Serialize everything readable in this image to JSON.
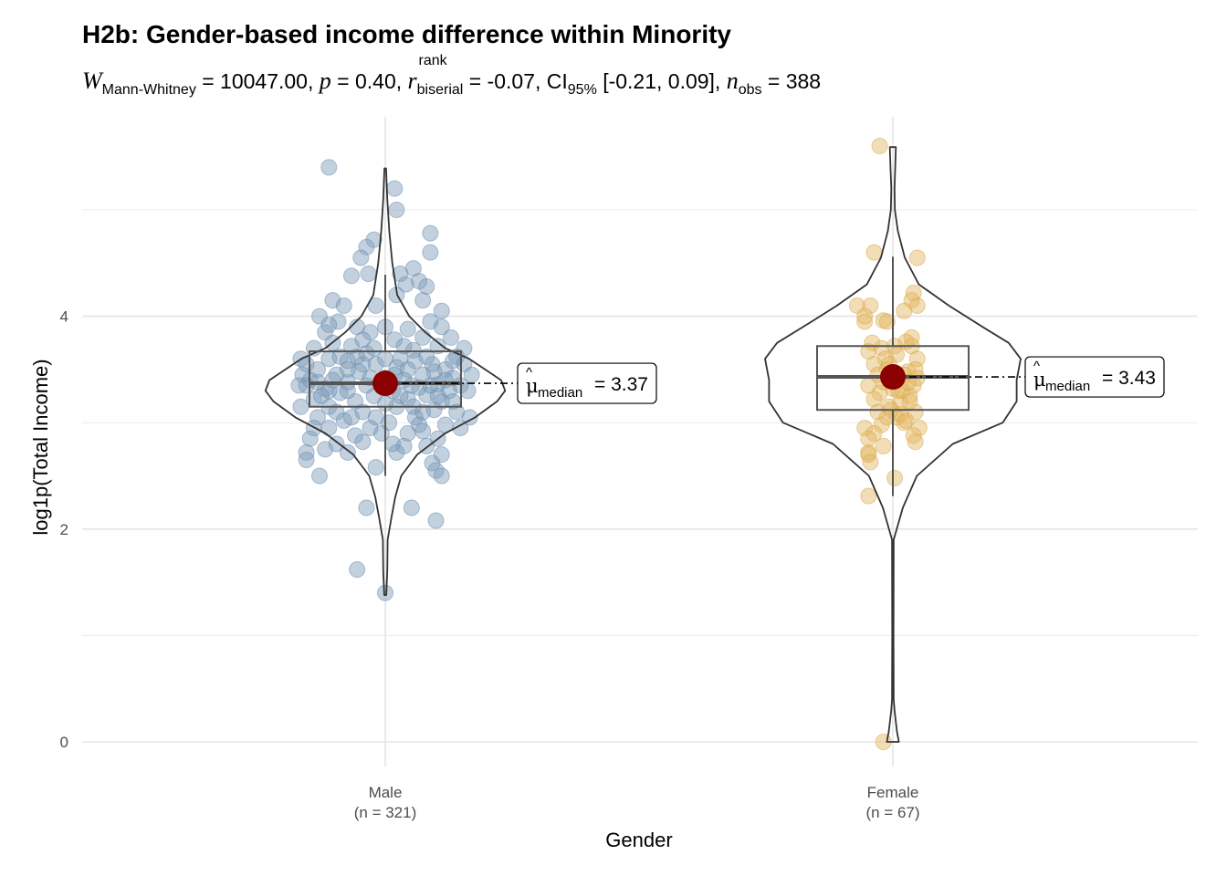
{
  "chart_data": {
    "type": "violin-box-scatter",
    "title": "H2b: Gender-based income difference within Minority",
    "subtitle": {
      "test_stat_symbol": "W",
      "test_stat_sub": "Mann-Whitney",
      "test_stat_value": "= 10047.00,",
      "p_symbol": "p",
      "p_value": "= 0.40,",
      "effect_symbol": "r",
      "effect_sup": "rank",
      "effect_sub": "biserial",
      "effect_value": "= -0.07,",
      "ci_label": "CI",
      "ci_sub": "95%",
      "ci_value": "[-0.21, 0.09],",
      "n_symbol": "n",
      "n_sub": "obs",
      "n_value": "= 388"
    },
    "xlabel": "Gender",
    "ylabel": "log1p(Total Income)",
    "ylim": [
      -0.1,
      5.9
    ],
    "y_ticks": [
      0,
      2,
      4
    ],
    "y_minor": [
      1,
      3,
      5
    ],
    "grid": true,
    "groups": [
      {
        "name": "Male",
        "n_label": "(n = 321)",
        "color": "#7a9ab8",
        "stroke": "#6f8fae",
        "box": {
          "q1": 3.15,
          "median": 3.37,
          "q3": 3.67,
          "whisker_low": 2.5,
          "whisker_high": 4.39
        },
        "median_label": "= 3.37",
        "median_label_sub": "median",
        "violin": [
          [
            1.38,
            0.005
          ],
          [
            1.6,
            0.01
          ],
          [
            1.9,
            0.012
          ],
          [
            2.1,
            0.03
          ],
          [
            2.3,
            0.05
          ],
          [
            2.5,
            0.08
          ],
          [
            2.7,
            0.16
          ],
          [
            2.9,
            0.3
          ],
          [
            3.05,
            0.45
          ],
          [
            3.2,
            0.56
          ],
          [
            3.3,
            0.6
          ],
          [
            3.4,
            0.58
          ],
          [
            3.5,
            0.5
          ],
          [
            3.6,
            0.42
          ],
          [
            3.7,
            0.3
          ],
          [
            3.85,
            0.2
          ],
          [
            4.0,
            0.12
          ],
          [
            4.2,
            0.06
          ],
          [
            4.5,
            0.035
          ],
          [
            4.8,
            0.02
          ],
          [
            5.1,
            0.01
          ],
          [
            5.39,
            0.004
          ]
        ],
        "points": [
          [
            -0.3,
            5.4
          ],
          [
            0.05,
            5.2
          ],
          [
            0.06,
            5.0
          ],
          [
            0.24,
            4.78
          ],
          [
            -0.06,
            4.72
          ],
          [
            -0.1,
            4.65
          ],
          [
            0.24,
            4.6
          ],
          [
            -0.13,
            4.55
          ],
          [
            -0.09,
            4.4
          ],
          [
            0.15,
            4.45
          ],
          [
            0.08,
            4.4
          ],
          [
            0.18,
            4.33
          ],
          [
            -0.18,
            4.38
          ],
          [
            0.22,
            4.28
          ],
          [
            0.11,
            4.3
          ],
          [
            -0.28,
            4.15
          ],
          [
            0.2,
            4.15
          ],
          [
            -0.22,
            4.1
          ],
          [
            -0.05,
            4.1
          ],
          [
            0.06,
            4.2
          ],
          [
            -0.35,
            4.0
          ],
          [
            0.3,
            4.05
          ],
          [
            -0.25,
            3.95
          ],
          [
            0.24,
            3.95
          ],
          [
            0.0,
            3.9
          ],
          [
            -0.15,
            3.9
          ],
          [
            0.12,
            3.88
          ],
          [
            -0.32,
            3.85
          ],
          [
            0.35,
            3.8
          ],
          [
            -0.08,
            3.85
          ],
          [
            0.2,
            3.8
          ],
          [
            -0.28,
            3.75
          ],
          [
            0.05,
            3.78
          ],
          [
            -0.18,
            3.72
          ],
          [
            0.28,
            3.72
          ],
          [
            -0.38,
            3.7
          ],
          [
            0.15,
            3.68
          ],
          [
            -0.1,
            3.65
          ],
          [
            0.38,
            3.62
          ],
          [
            -0.3,
            3.6
          ],
          [
            0.08,
            3.6
          ],
          [
            -0.2,
            3.58
          ],
          [
            0.25,
            3.55
          ],
          [
            -0.05,
            3.55
          ],
          [
            0.32,
            3.5
          ],
          [
            -0.36,
            3.5
          ],
          [
            0.12,
            3.5
          ],
          [
            -0.14,
            3.48
          ],
          [
            0.2,
            3.45
          ],
          [
            -0.26,
            3.45
          ],
          [
            0.0,
            3.42
          ],
          [
            0.36,
            3.42
          ],
          [
            -0.4,
            3.4
          ],
          [
            0.1,
            3.4
          ],
          [
            -0.2,
            3.38
          ],
          [
            0.28,
            3.36
          ],
          [
            -0.1,
            3.35
          ],
          [
            0.18,
            3.33
          ],
          [
            -0.32,
            3.32
          ],
          [
            0.04,
            3.3
          ],
          [
            0.34,
            3.3
          ],
          [
            -0.24,
            3.28
          ],
          [
            0.22,
            3.26
          ],
          [
            -0.06,
            3.25
          ],
          [
            -0.38,
            3.22
          ],
          [
            0.12,
            3.22
          ],
          [
            0.3,
            3.2
          ],
          [
            -0.16,
            3.2
          ],
          [
            -0.3,
            3.15
          ],
          [
            0.06,
            3.15
          ],
          [
            0.26,
            3.12
          ],
          [
            -0.12,
            3.1
          ],
          [
            0.38,
            3.1
          ],
          [
            -0.36,
            3.05
          ],
          [
            0.16,
            3.05
          ],
          [
            -0.22,
            3.02
          ],
          [
            0.02,
            3.0
          ],
          [
            0.32,
            2.98
          ],
          [
            -0.3,
            2.95
          ],
          [
            -0.08,
            2.95
          ],
          [
            0.2,
            2.92
          ],
          [
            0.12,
            2.9
          ],
          [
            -0.16,
            2.88
          ],
          [
            -0.4,
            2.85
          ],
          [
            0.28,
            2.85
          ],
          [
            -0.26,
            2.8
          ],
          [
            0.04,
            2.8
          ],
          [
            0.22,
            2.78
          ],
          [
            -0.42,
            2.72
          ],
          [
            -0.32,
            2.75
          ],
          [
            0.06,
            2.72
          ],
          [
            -0.2,
            2.72
          ],
          [
            0.3,
            2.7
          ],
          [
            -0.42,
            2.65
          ],
          [
            0.25,
            2.62
          ],
          [
            0.27,
            2.55
          ],
          [
            -0.05,
            2.58
          ],
          [
            -0.35,
            2.5
          ],
          [
            0.3,
            2.5
          ],
          [
            -0.1,
            2.2
          ],
          [
            0.14,
            2.2
          ],
          [
            0.27,
            2.08
          ],
          [
            -0.15,
            1.62
          ],
          [
            0.0,
            1.4
          ],
          [
            -0.42,
            3.35
          ],
          [
            0.4,
            3.35
          ],
          [
            -0.44,
            3.45
          ],
          [
            0.42,
            3.55
          ],
          [
            -0.2,
            3.3
          ],
          [
            0.15,
            3.15
          ],
          [
            -0.05,
            3.05
          ],
          [
            0.08,
            3.25
          ],
          [
            -0.28,
            3.4
          ],
          [
            0.32,
            3.4
          ],
          [
            -0.12,
            3.55
          ],
          [
            0.05,
            3.45
          ],
          [
            -0.34,
            3.25
          ],
          [
            0.36,
            3.2
          ],
          [
            0.0,
            3.6
          ],
          [
            -0.24,
            3.62
          ],
          [
            0.22,
            3.62
          ],
          [
            0.1,
            3.72
          ],
          [
            -0.12,
            3.78
          ],
          [
            0.3,
            3.9
          ],
          [
            -0.3,
            3.92
          ],
          [
            0.42,
            3.7
          ],
          [
            -0.45,
            3.6
          ],
          [
            0.44,
            3.3
          ],
          [
            -0.45,
            3.15
          ],
          [
            0.45,
            3.05
          ],
          [
            -0.18,
            3.05
          ],
          [
            0.18,
            2.98
          ],
          [
            -0.02,
            2.9
          ],
          [
            -0.12,
            2.82
          ],
          [
            0.1,
            2.78
          ],
          [
            0.26,
            3.48
          ],
          [
            -0.36,
            3.38
          ],
          [
            0.0,
            3.18
          ],
          [
            0.14,
            3.35
          ],
          [
            -0.08,
            3.42
          ],
          [
            0.36,
            3.58
          ],
          [
            -0.42,
            3.55
          ],
          [
            0.2,
            3.1
          ],
          [
            -0.26,
            3.1
          ],
          [
            0.4,
            2.95
          ],
          [
            -0.38,
            2.95
          ],
          [
            0.06,
            3.52
          ],
          [
            -0.15,
            3.62
          ],
          [
            0.28,
            3.25
          ],
          [
            -0.3,
            3.3
          ],
          [
            -0.06,
            3.7
          ],
          [
            0.16,
            3.58
          ],
          [
            0.46,
            3.45
          ],
          [
            -0.46,
            3.35
          ],
          [
            0.24,
            3.35
          ],
          [
            -0.2,
            3.5
          ]
        ]
      },
      {
        "name": "Female",
        "n_label": "(n = 67)",
        "color": "#e2b65e",
        "stroke": "#d8a94c",
        "box": {
          "q1": 3.12,
          "median": 3.43,
          "q3": 3.72,
          "whisker_low": 2.31,
          "whisker_high": 4.56
        },
        "median_label": "= 3.43",
        "median_label_sub": "median",
        "violin": [
          [
            0.0,
            0.03
          ],
          [
            0.1,
            0.02
          ],
          [
            0.3,
            0.008
          ],
          [
            0.4,
            0.004
          ],
          [
            1.0,
            0.003
          ],
          [
            1.9,
            0.004
          ],
          [
            2.2,
            0.05
          ],
          [
            2.5,
            0.12
          ],
          [
            2.8,
            0.3
          ],
          [
            3.0,
            0.55
          ],
          [
            3.2,
            0.62
          ],
          [
            3.4,
            0.62
          ],
          [
            3.6,
            0.64
          ],
          [
            3.75,
            0.58
          ],
          [
            3.9,
            0.45
          ],
          [
            4.1,
            0.28
          ],
          [
            4.3,
            0.13
          ],
          [
            4.55,
            0.06
          ],
          [
            4.8,
            0.025
          ],
          [
            5.0,
            0.01
          ],
          [
            5.2,
            0.008
          ],
          [
            5.4,
            0.012
          ],
          [
            5.59,
            0.015
          ]
        ],
        "points": [
          [
            -0.07,
            5.6
          ],
          [
            -0.1,
            4.6
          ],
          [
            0.13,
            4.55
          ],
          [
            -0.12,
            4.1
          ],
          [
            0.1,
            4.15
          ],
          [
            0.11,
            4.22
          ],
          [
            -0.05,
            3.96
          ],
          [
            -0.19,
            4.1
          ],
          [
            -0.15,
            4.0
          ],
          [
            0.06,
            4.05
          ],
          [
            -0.15,
            3.95
          ],
          [
            0.13,
            4.1
          ],
          [
            -0.03,
            3.95
          ],
          [
            0.1,
            3.8
          ],
          [
            -0.11,
            3.75
          ],
          [
            0.07,
            3.76
          ],
          [
            -0.13,
            3.67
          ],
          [
            -0.06,
            3.7
          ],
          [
            0.01,
            3.72
          ],
          [
            0.1,
            3.72
          ],
          [
            0.02,
            3.64
          ],
          [
            -0.04,
            3.6
          ],
          [
            0.13,
            3.6
          ],
          [
            -0.1,
            3.55
          ],
          [
            0.12,
            3.5
          ],
          [
            -0.02,
            3.55
          ],
          [
            0.08,
            3.48
          ],
          [
            0.06,
            3.45
          ],
          [
            -0.08,
            3.45
          ],
          [
            0.13,
            3.42
          ],
          [
            -0.05,
            3.38
          ],
          [
            -0.13,
            3.35
          ],
          [
            0.11,
            3.35
          ],
          [
            0.0,
            3.32
          ],
          [
            0.03,
            3.3
          ],
          [
            -0.07,
            3.28
          ],
          [
            0.09,
            3.25
          ],
          [
            -0.1,
            3.22
          ],
          [
            0.04,
            3.18
          ],
          [
            -0.02,
            3.15
          ],
          [
            0.12,
            3.1
          ],
          [
            -0.08,
            3.1
          ],
          [
            0.02,
            3.05
          ],
          [
            0.06,
            3.0
          ],
          [
            -0.06,
            2.98
          ],
          [
            0.14,
            2.95
          ],
          [
            -0.1,
            2.9
          ],
          [
            0.11,
            2.88
          ],
          [
            0.04,
            3.08
          ],
          [
            -0.15,
            2.95
          ],
          [
            0.09,
            3.2
          ],
          [
            -0.03,
            3.05
          ],
          [
            0.12,
            2.82
          ],
          [
            -0.05,
            2.78
          ],
          [
            -0.13,
            2.72
          ],
          [
            0.07,
            3.02
          ],
          [
            -0.12,
            2.63
          ],
          [
            -0.13,
            2.85
          ],
          [
            -0.13,
            2.7
          ],
          [
            0.01,
            2.48
          ],
          [
            -0.13,
            2.31
          ],
          [
            -0.05,
            0.0
          ],
          [
            0.0,
            3.4
          ],
          [
            0.05,
            3.3
          ],
          [
            -0.01,
            3.12
          ],
          [
            0.08,
            3.38
          ],
          [
            -0.03,
            3.5
          ]
        ]
      }
    ]
  }
}
